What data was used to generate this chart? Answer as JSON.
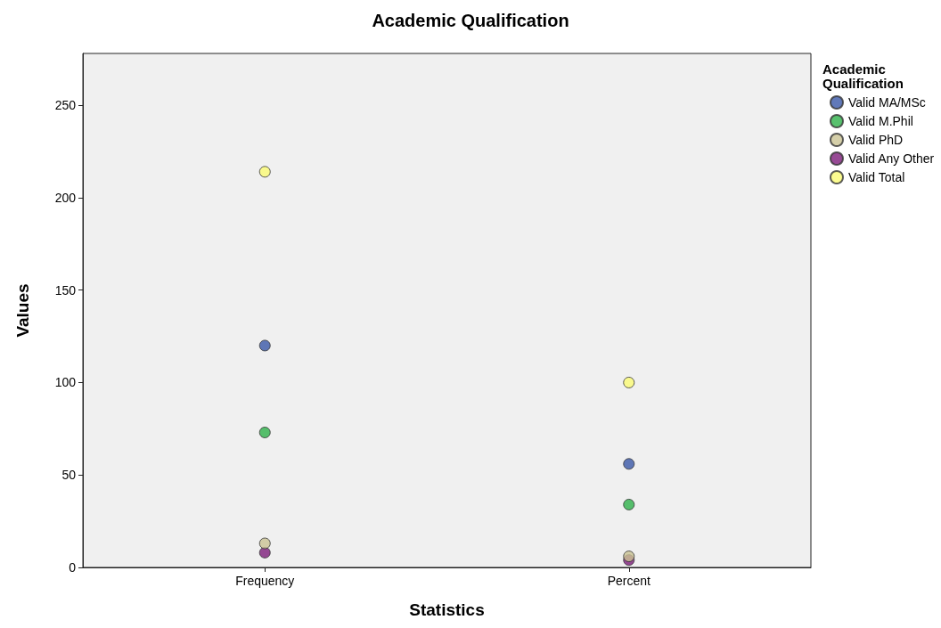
{
  "chart_data": {
    "type": "scatter",
    "title": "Academic Qualification",
    "xlabel": "Statistics",
    "ylabel": "Values",
    "legend_title": "Academic Qualification",
    "categories": [
      "Frequency",
      "Percent"
    ],
    "series": [
      {
        "name": "Valid MA/MSc",
        "color": "#3a57a8",
        "values": [
          120,
          56
        ]
      },
      {
        "name": "Valid M.Phil",
        "color": "#2eb24a",
        "values": [
          73,
          34
        ]
      },
      {
        "name": "Valid PhD",
        "color": "#cbc394",
        "values": [
          13,
          6
        ]
      },
      {
        "name": "Valid Any Other",
        "color": "#7d1d7a",
        "values": [
          8,
          4
        ]
      },
      {
        "name": "Valid Total",
        "color": "#fbfb74",
        "values": [
          214,
          100
        ]
      }
    ],
    "ylim": [
      0,
      278
    ],
    "yticks": [
      0,
      50,
      100,
      150,
      200,
      250
    ],
    "grid": false,
    "legend": "top right",
    "marker": "circle"
  }
}
